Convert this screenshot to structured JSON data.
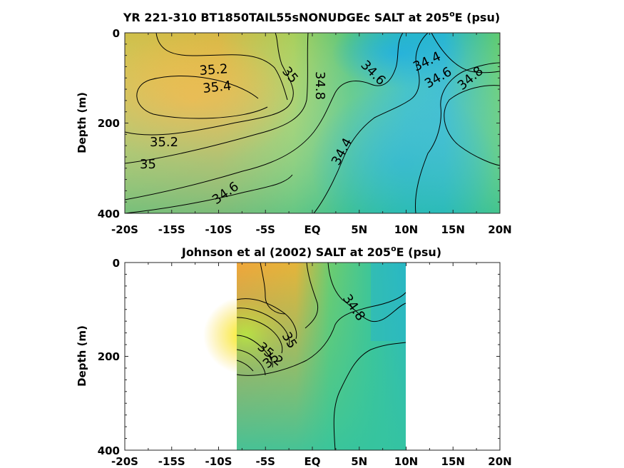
{
  "chart_data": [
    {
      "type": "heatmap",
      "title": "YR 221-310 BT1850TAIL55sNONUDGEc SALT at 205",
      "title_sup": "o",
      "title_suffix": "E (psu)",
      "xlabel": "",
      "ylabel": "Depth (m)",
      "x_ticks": [
        "-20S",
        "-15S",
        "-10S",
        "-5S",
        "EQ",
        "5N",
        "10N",
        "15N",
        "20N"
      ],
      "y_ticks": [
        "0",
        "200",
        "400"
      ],
      "xlim": [
        -20,
        20
      ],
      "ylim": [
        0,
        400
      ],
      "y_reversed": true,
      "contour_levels": [
        34.4,
        34.6,
        34.8,
        35.0,
        35.2,
        35.4
      ],
      "contour_labels": [
        "35.2",
        "35.4",
        "35",
        "34.8",
        "34.6",
        "34.4",
        "34.6",
        "34.8",
        "35.2",
        "35",
        "34.4",
        "34.6"
      ],
      "features": [
        {
          "kind": "max",
          "lat": -12,
          "depth": 150,
          "salt": 35.5
        },
        {
          "kind": "min",
          "lat": 8,
          "depth": 250,
          "salt": 34.3
        }
      ]
    },
    {
      "type": "heatmap",
      "title": "Johnson et al (2002) SALT at 205",
      "title_sup": "o",
      "title_suffix": "E (psu)",
      "xlabel": "",
      "ylabel": "Depth (m)",
      "x_ticks": [
        "-20S",
        "-15S",
        "-10S",
        "-5S",
        "EQ",
        "5N",
        "10N",
        "15N",
        "20N"
      ],
      "y_ticks": [
        "0",
        "200",
        "400"
      ],
      "xlim": [
        -20,
        20
      ],
      "ylim": [
        0,
        400
      ],
      "data_xlim": [
        -8,
        10
      ],
      "y_reversed": true,
      "contour_labels": [
        "34.8",
        "35",
        "35.2",
        "35"
      ],
      "features": [
        {
          "kind": "max",
          "lat": -7,
          "depth": 150,
          "salt": 35.8
        }
      ]
    }
  ],
  "colors": {
    "salt_high": "#f5e020",
    "salt_orange": "#f7b236",
    "salt_mid": "#8fd05a",
    "salt_green": "#3cc48e",
    "salt_low": "#1fb2d6"
  }
}
